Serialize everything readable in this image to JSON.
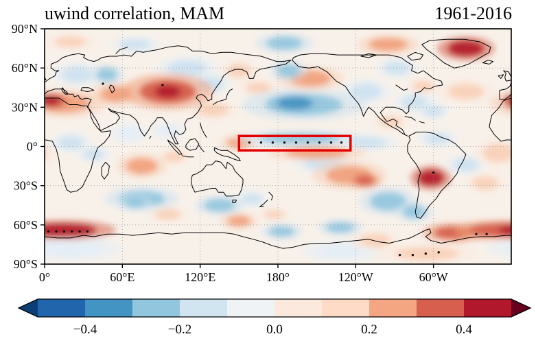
{
  "figure": {
    "title": "uwind correlation, MAM",
    "period": "1961-2016"
  },
  "axes": {
    "lat_tick_values": [
      90,
      60,
      30,
      0,
      -30,
      -60,
      -90
    ],
    "lat_tick_labels": [
      "90°N",
      "60°N",
      "30°N",
      "0°",
      "30°S",
      "60°S",
      "90°S"
    ],
    "lon_tick_values": [
      0,
      60,
      120,
      180,
      240,
      300
    ],
    "lon_tick_labels": [
      "0°",
      "60°E",
      "120°E",
      "180°",
      "120°W",
      "60°W"
    ],
    "lat_gridlines": [
      60,
      30,
      0,
      -30,
      -60
    ],
    "lon_gridlines": [
      60,
      120,
      180,
      240,
      300
    ]
  },
  "colorbar": {
    "tick_labels": [
      "−0.4",
      "−0.2",
      "0.0",
      "0.2",
      "0.4"
    ],
    "tick_values": [
      -0.4,
      -0.2,
      0.0,
      0.2,
      0.4
    ],
    "vmin": -0.5,
    "vmax": 0.5,
    "segment_colors": [
      "#2166ac",
      "#4393c3",
      "#92c5de",
      "#d1e5f0",
      "#eff3f5",
      "#fbe9de",
      "#fddbc7",
      "#f4a582",
      "#d6604d",
      "#b2182b"
    ],
    "under_color": "#0b3f73",
    "over_color": "#67001f"
  },
  "chart_data": {
    "type": "heatmap",
    "title": "uwind correlation, MAM",
    "period": "1961-2016",
    "variable": "uwind correlation",
    "season": "MAM",
    "projection": "equirectangular global map",
    "lon_range": [
      0,
      360
    ],
    "lat_range": [
      -90,
      90
    ],
    "value_range": [
      -0.5,
      0.5
    ],
    "background_color": "#f8f1ea",
    "highlight_box": {
      "lon_min": 150,
      "lon_max": 236,
      "lat_min": -3,
      "lat_max": 8,
      "color": "#e50000"
    },
    "features": [
      [
        15,
        33,
        20,
        7,
        0.3
      ],
      [
        5,
        35,
        8,
        4,
        0.45
      ],
      [
        55,
        40,
        12,
        6,
        0.25
      ],
      [
        95,
        42,
        22,
        9,
        0.35
      ],
      [
        95,
        42,
        10,
        5,
        0.5
      ],
      [
        130,
        28,
        12,
        5,
        0.15
      ],
      [
        150,
        58,
        9,
        5,
        0.2
      ],
      [
        205,
        52,
        16,
        6,
        0.3
      ],
      [
        165,
        45,
        10,
        4,
        0.15
      ],
      [
        265,
        78,
        15,
        5,
        0.3
      ],
      [
        325,
        75,
        14,
        6,
        0.45
      ],
      [
        20,
        80,
        12,
        4,
        0.2
      ],
      [
        325,
        42,
        14,
        6,
        0.2
      ],
      [
        292,
        46,
        8,
        4,
        0.15
      ],
      [
        350,
        -5,
        12,
        7,
        0.2
      ],
      [
        150,
        3,
        9,
        4,
        0.25
      ],
      [
        210,
        -5,
        24,
        4,
        0.25
      ],
      [
        235,
        -22,
        18,
        7,
        0.25
      ],
      [
        247,
        -26,
        8,
        4,
        0.35
      ],
      [
        298,
        -24,
        10,
        6,
        0.45
      ],
      [
        340,
        -28,
        10,
        5,
        0.15
      ],
      [
        75,
        -15,
        12,
        6,
        0.25
      ],
      [
        100,
        -8,
        8,
        4,
        0.2
      ],
      [
        267,
        19,
        9,
        4,
        0.15
      ],
      [
        15,
        -64,
        25,
        5,
        0.45
      ],
      [
        345,
        -64,
        18,
        5,
        0.4
      ],
      [
        315,
        -66,
        15,
        5,
        0.35
      ],
      [
        95,
        -52,
        10,
        4,
        0.2
      ],
      [
        150,
        -57,
        9,
        4,
        0.3
      ],
      [
        177,
        -52,
        8,
        3,
        0.2
      ],
      [
        255,
        -72,
        12,
        5,
        0.2
      ],
      [
        295,
        -82,
        25,
        5,
        0.15
      ],
      [
        200,
        32,
        30,
        8,
        -0.25
      ],
      [
        193,
        33,
        14,
        5,
        -0.35
      ],
      [
        197,
        6,
        32,
        4,
        -0.25
      ],
      [
        250,
        3,
        14,
        4,
        -0.2
      ],
      [
        188,
        58,
        9,
        5,
        -0.3
      ],
      [
        185,
        79,
        14,
        5,
        -0.3
      ],
      [
        70,
        78,
        12,
        4,
        -0.15
      ],
      [
        248,
        42,
        12,
        6,
        -0.2
      ],
      [
        285,
        34,
        10,
        5,
        -0.15
      ],
      [
        300,
        27,
        8,
        4,
        -0.15
      ],
      [
        272,
        60,
        10,
        5,
        -0.2
      ],
      [
        25,
        55,
        12,
        6,
        -0.2
      ],
      [
        48,
        55,
        8,
        5,
        -0.3
      ],
      [
        110,
        60,
        15,
        6,
        -0.15
      ],
      [
        128,
        48,
        10,
        5,
        -0.15
      ],
      [
        20,
        3,
        10,
        5,
        -0.2
      ],
      [
        38,
        -6,
        8,
        4,
        -0.15
      ],
      [
        65,
        10,
        9,
        5,
        -0.12
      ],
      [
        95,
        12,
        8,
        4,
        -0.12
      ],
      [
        75,
        -40,
        18,
        6,
        -0.25
      ],
      [
        70,
        -43,
        8,
        4,
        -0.3
      ],
      [
        135,
        -45,
        12,
        5,
        -0.25
      ],
      [
        160,
        -40,
        8,
        4,
        -0.2
      ],
      [
        215,
        -13,
        15,
        5,
        -0.2
      ],
      [
        265,
        -42,
        14,
        7,
        -0.25
      ],
      [
        285,
        -50,
        9,
        5,
        -0.3
      ],
      [
        325,
        -14,
        10,
        5,
        -0.15
      ],
      [
        183,
        -65,
        10,
        4,
        -0.3
      ],
      [
        228,
        -62,
        11,
        4,
        -0.3
      ],
      [
        303,
        6,
        10,
        4,
        -0.15
      ],
      [
        20,
        -78,
        25,
        6,
        -0.12
      ],
      [
        230,
        -80,
        20,
        5,
        -0.12
      ]
    ],
    "stipple_points": [
      [
        158,
        3
      ],
      [
        167,
        3
      ],
      [
        176,
        3
      ],
      [
        185,
        3
      ],
      [
        194,
        3
      ],
      [
        203,
        3
      ],
      [
        212,
        3
      ],
      [
        221,
        3
      ],
      [
        229,
        3
      ],
      [
        3,
        -65
      ],
      [
        9,
        -65
      ],
      [
        15,
        -65
      ],
      [
        21,
        -65
      ],
      [
        27,
        -65
      ],
      [
        33,
        -65
      ],
      [
        274,
        -83
      ],
      [
        284,
        -83
      ],
      [
        294,
        -82
      ],
      [
        304,
        -81
      ],
      [
        45,
        48
      ],
      [
        91,
        47
      ],
      [
        300,
        -20
      ],
      [
        333,
        -67
      ],
      [
        341,
        -67
      ]
    ]
  }
}
